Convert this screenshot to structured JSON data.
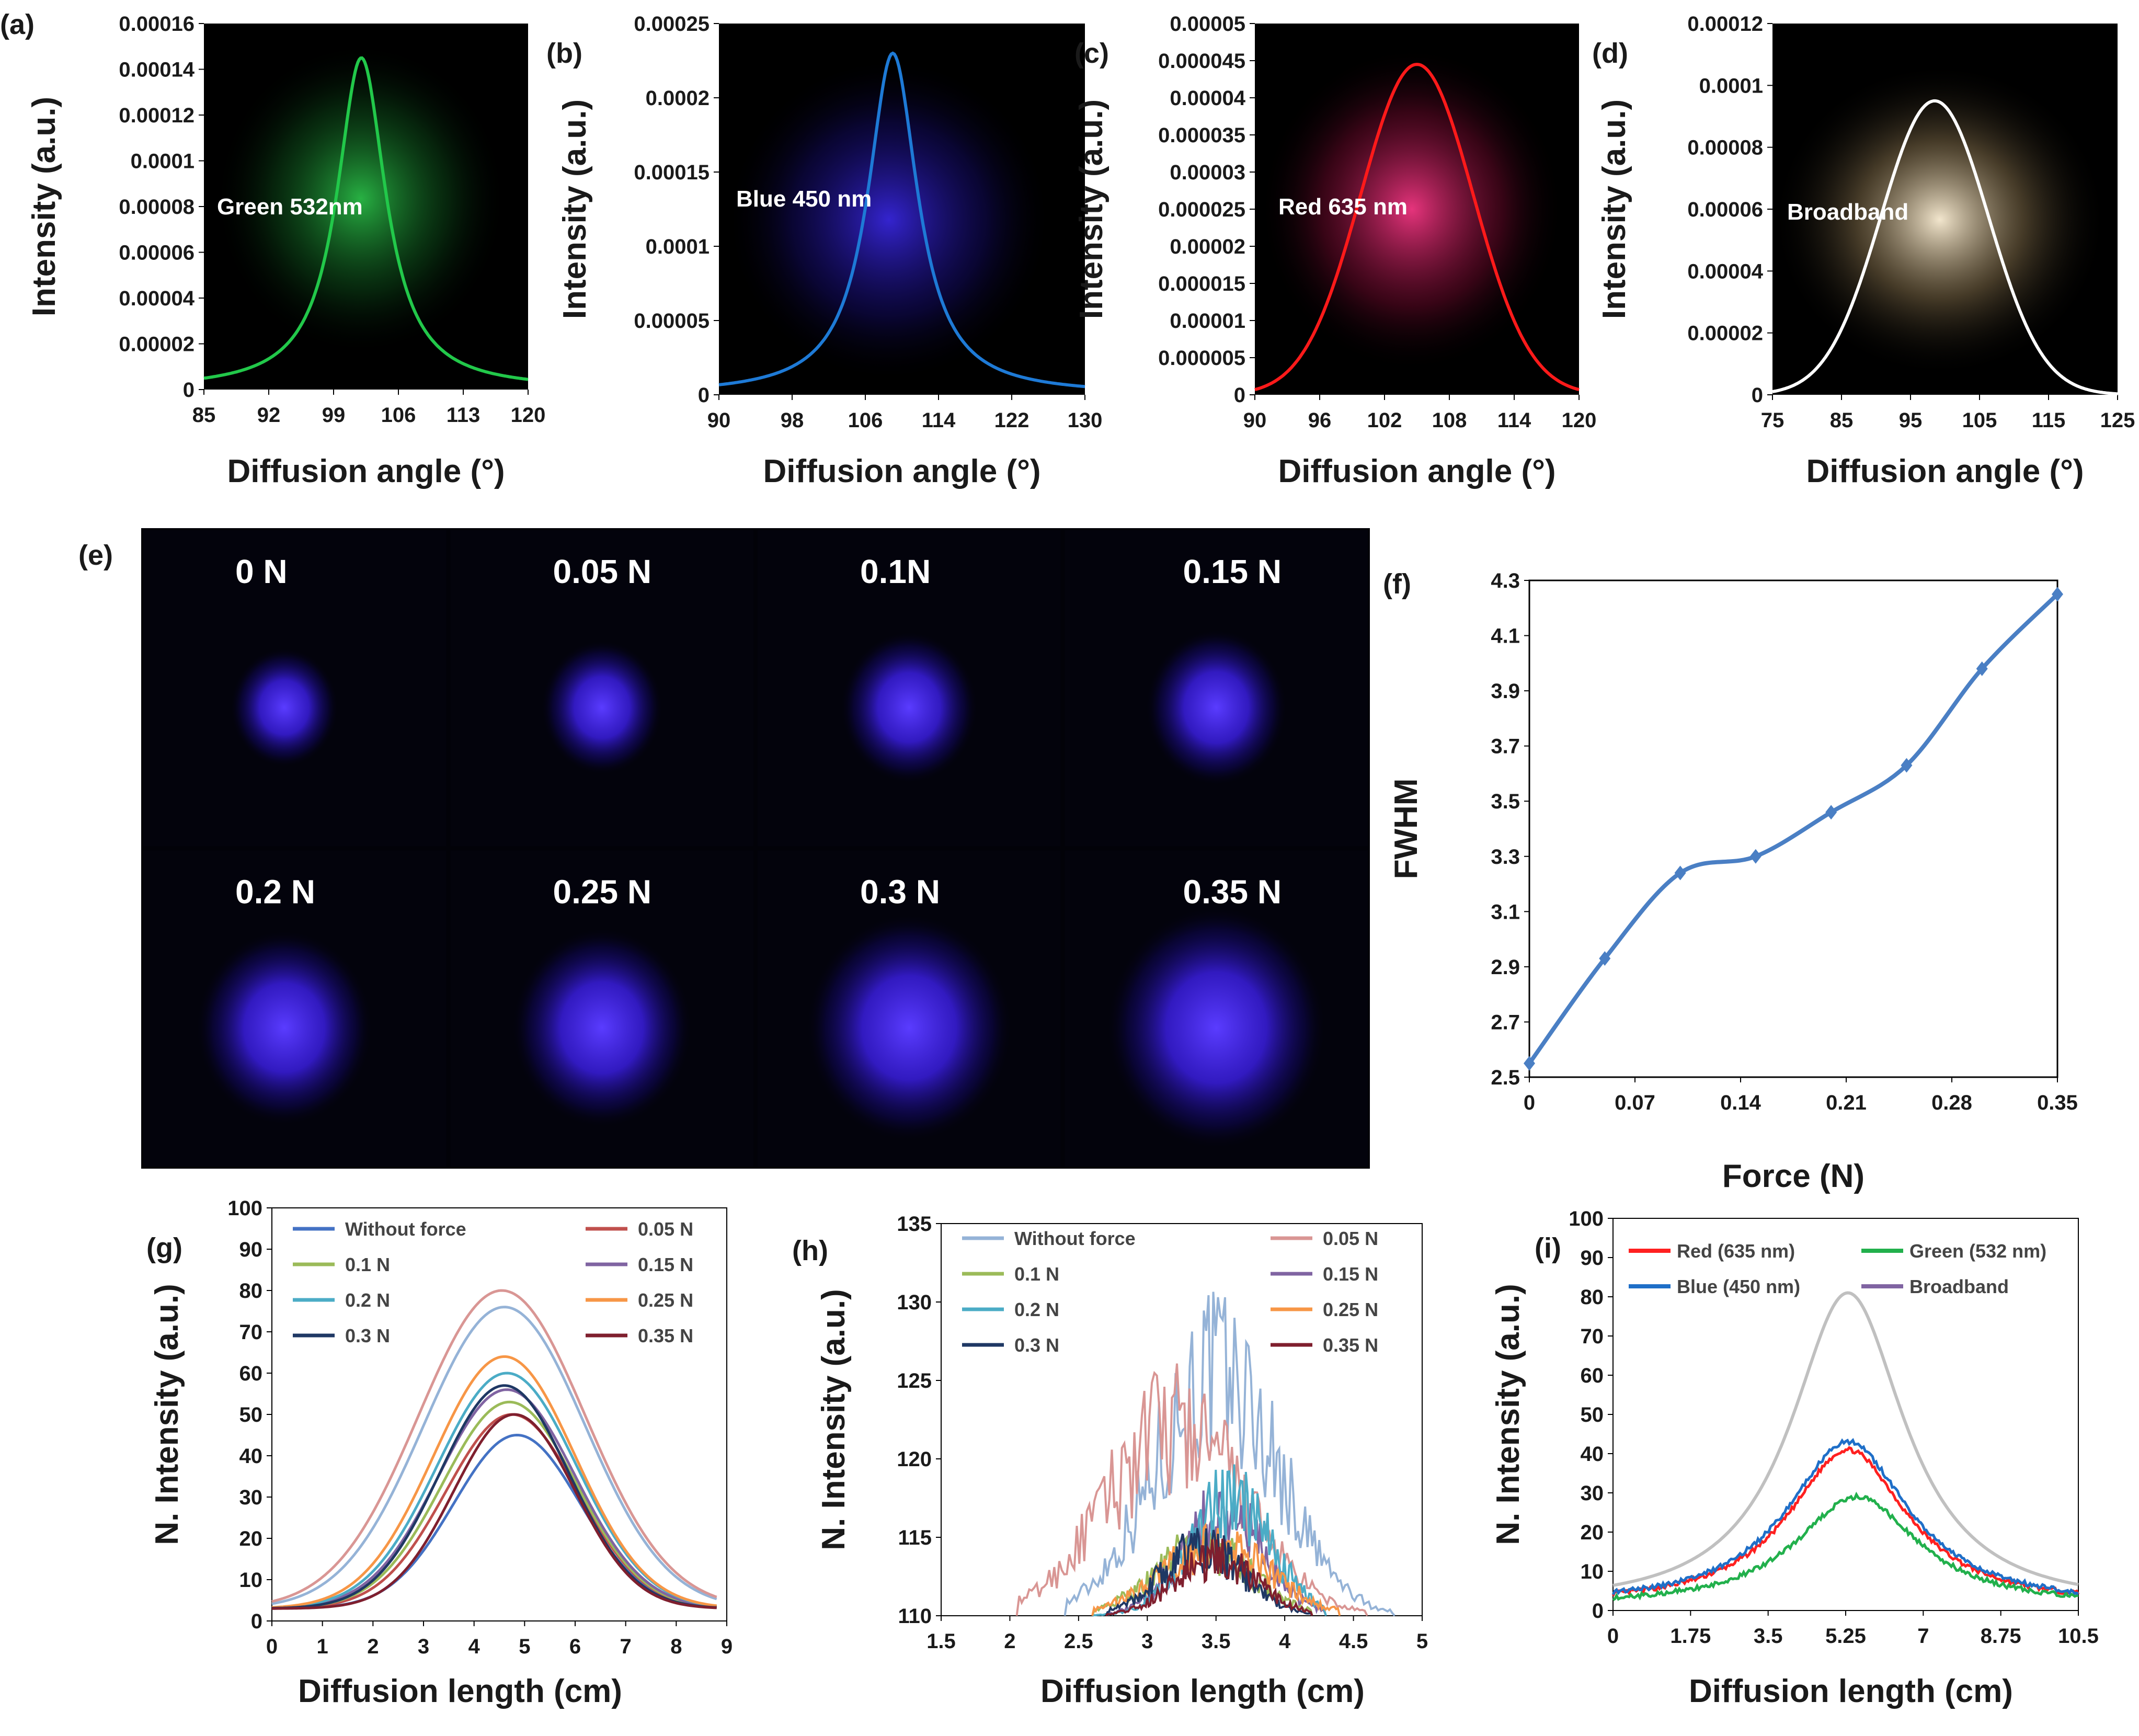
{
  "colors": {
    "green": "#22c84a",
    "blue": "#1e7ad6",
    "red": "#ff1a1a",
    "white": "#ffffff",
    "fwhm": "#4a7fc4",
    "spot": "#4a2cff"
  },
  "spots": {
    "panel_label": "(e)",
    "labels": [
      "0 N",
      "0.05 N",
      "0.1N",
      "0.15 N",
      "0.2 N",
      "0.25 N",
      "0.3 N",
      "0.35 N"
    ],
    "forces": [
      0,
      0.05,
      0.1,
      0.15,
      0.2,
      0.25,
      0.3,
      0.35
    ]
  },
  "chart_data": [
    {
      "id": "a",
      "panel_label": "(a)",
      "type": "line",
      "annotation": "Green 532nm",
      "color": "#22c84a",
      "glow": "#1fa83a",
      "xlabel": "Diffusion angle (°)",
      "ylabel": "Intensity (a.u.)",
      "xlim": [
        85,
        120
      ],
      "xticks": [
        "85",
        "92",
        "99",
        "106",
        "113",
        "120"
      ],
      "ylim": [
        0,
        0.00016
      ],
      "yticks": [
        "0",
        "0.00002",
        "0.00004",
        "0.00006",
        "0.00008",
        "0.0001",
        "0.00012",
        "0.00014",
        "0.00016"
      ],
      "peak": {
        "x": 102,
        "y": 0.000145,
        "width": 3.2,
        "shape": "lorentz"
      }
    },
    {
      "id": "b",
      "panel_label": "(b)",
      "type": "line",
      "annotation": "Blue 450 nm",
      "color": "#1e7ad6",
      "glow": "#2a1cc8",
      "xlabel": "Diffusion angle (°)",
      "ylabel": "Intensity (a.u.)",
      "xlim": [
        90,
        130
      ],
      "xticks": [
        "90",
        "98",
        "106",
        "114",
        "122",
        "130"
      ],
      "ylim": [
        0,
        0.00025
      ],
      "yticks": [
        "0",
        "0.00005",
        "0.0001",
        "0.00015",
        "0.0002",
        "0.00025"
      ],
      "peak": {
        "x": 109,
        "y": 0.00023,
        "width": 3.3,
        "shape": "lorentz"
      }
    },
    {
      "id": "c",
      "panel_label": "(c)",
      "type": "line",
      "annotation": "Red 635 nm",
      "color": "#ff1a1a",
      "glow": "#c8124a",
      "xlabel": "Diffusion angle (°)",
      "ylabel": "Intensity (a.u.)",
      "xlim": [
        90,
        120
      ],
      "xticks": [
        "90",
        "96",
        "102",
        "108",
        "114",
        "120"
      ],
      "ylim": [
        0,
        5e-05
      ],
      "yticks": [
        "0",
        "0.000005",
        "0.00001",
        "0.000015",
        "0.00002",
        "0.000025",
        "0.00003",
        "0.000035",
        "0.00004",
        "0.000045",
        "0.00005"
      ],
      "peak": {
        "x": 105,
        "y": 4.45e-05,
        "width": 5.2,
        "shape": "gauss"
      }
    },
    {
      "id": "d",
      "panel_label": "(d)",
      "type": "line",
      "annotation": "Broadband",
      "color": "#ffffff",
      "glow": "#d8c39a",
      "xlabel": "Diffusion angle (°)",
      "ylabel": "Intensity (a.u.)",
      "xlim": [
        75,
        125
      ],
      "xticks": [
        "75",
        "85",
        "95",
        "105",
        "115",
        "125"
      ],
      "ylim": [
        0,
        0.00012
      ],
      "yticks": [
        "0",
        "0.00002",
        "0.00004",
        "0.00006",
        "0.00008",
        "0.0001",
        "0.00012"
      ],
      "peak": {
        "x": 98.5,
        "y": 9.5e-05,
        "width": 7.8,
        "shape": "gauss"
      }
    },
    {
      "id": "f",
      "panel_label": "(f)",
      "type": "line",
      "xlabel": "Force (N)",
      "ylabel": "FWHM",
      "xlim": [
        0,
        0.35
      ],
      "xticks": [
        "0",
        "0.07",
        "0.14",
        "0.21",
        "0.28",
        "0.35"
      ],
      "ylim": [
        2.5,
        4.3
      ],
      "yticks": [
        "2.5",
        "2.7",
        "2.9",
        "3.1",
        "3.3",
        "3.5",
        "3.7",
        "3.9",
        "4.1",
        "4.3"
      ],
      "x": [
        0,
        0.05,
        0.1,
        0.15,
        0.2,
        0.25,
        0.3,
        0.35
      ],
      "y": [
        2.55,
        2.93,
        3.24,
        3.3,
        3.46,
        3.63,
        3.98,
        4.25
      ]
    },
    {
      "id": "g",
      "panel_label": "(g)",
      "type": "line",
      "xlabel": "Diffusion length (cm)",
      "ylabel": "N. Intensity (a.u.)",
      "xlim": [
        0,
        9
      ],
      "xticks": [
        "0",
        "1",
        "2",
        "3",
        "4",
        "5",
        "6",
        "7",
        "8",
        "9"
      ],
      "ylim": [
        0,
        100
      ],
      "yticks": [
        "0",
        "10",
        "20",
        "30",
        "40",
        "50",
        "60",
        "70",
        "80",
        "90",
        "100"
      ],
      "series": [
        {
          "name": "Without force",
          "color": "#4472c4",
          "peak": 45,
          "center": 4.85,
          "sigma": 1.25
        },
        {
          "name": "0.05 N",
          "color": "#c0504d",
          "peak": 50,
          "center": 4.75,
          "sigma": 1.3
        },
        {
          "name": "0.1 N",
          "color": "#9bbb59",
          "peak": 53,
          "center": 4.7,
          "sigma": 1.32
        },
        {
          "name": "0.15 N",
          "color": "#8064a2",
          "peak": 56,
          "center": 4.65,
          "sigma": 1.35
        },
        {
          "name": "0.2 N",
          "color": "#4bacc6",
          "peak": 60,
          "center": 4.65,
          "sigma": 1.38
        },
        {
          "name": "0.25 N",
          "color": "#f79646",
          "peak": 64,
          "center": 4.6,
          "sigma": 1.4
        },
        {
          "name": "0.3 N",
          "color": "#1f3864",
          "peak": 57,
          "center": 4.6,
          "sigma": 1.28
        },
        {
          "name": "0.35 N",
          "color": "#7f1f2e",
          "peak": 50,
          "center": 4.8,
          "sigma": 1.2
        },
        {
          "name": "",
          "color": "#95b3d7",
          "peak": 76,
          "center": 4.6,
          "sigma": 1.6
        },
        {
          "name": "",
          "color": "#d99694",
          "peak": 80,
          "center": 4.55,
          "sigma": 1.65
        }
      ]
    },
    {
      "id": "h",
      "panel_label": "(h)",
      "type": "line",
      "xlabel": "Diffusion length (cm)",
      "ylabel": "N. Intensity (a.u.)",
      "xlim": [
        1.5,
        5
      ],
      "xticks": [
        "1.5",
        "2",
        "2.5",
        "3",
        "3.5",
        "4",
        "4.5",
        "5"
      ],
      "ylim": [
        110,
        135
      ],
      "yticks": [
        "110",
        "115",
        "120",
        "125",
        "130",
        "135"
      ],
      "series": [
        {
          "name": "Without force",
          "color": "#95b3d7",
          "start": 2.4,
          "end": 4.8,
          "peak": 131.3,
          "center": 3.5,
          "spread": 0.45
        },
        {
          "name": "0.05 N",
          "color": "#d99694",
          "start": 2.05,
          "end": 4.6,
          "peak": 126.5,
          "center": 3.2,
          "spread": 0.5
        },
        {
          "name": "0.1 N",
          "color": "#9bbb59",
          "start": 2.6,
          "end": 4.2,
          "peak": 116,
          "center": 3.4,
          "spread": 0.35
        },
        {
          "name": "0.15 N",
          "color": "#8064a2",
          "start": 2.7,
          "end": 4.3,
          "peak": 119,
          "center": 3.55,
          "spread": 0.3
        },
        {
          "name": "0.2 N",
          "color": "#4bacc6",
          "start": 2.6,
          "end": 4.3,
          "peak": 120,
          "center": 3.6,
          "spread": 0.3
        },
        {
          "name": "0.25 N",
          "color": "#f79646",
          "start": 2.6,
          "end": 4.4,
          "peak": 116,
          "center": 3.5,
          "spread": 0.4
        },
        {
          "name": "0.3 N",
          "color": "#1f3864",
          "start": 2.7,
          "end": 4.2,
          "peak": 116,
          "center": 3.4,
          "spread": 0.3
        },
        {
          "name": "0.35 N",
          "color": "#7f1f2e",
          "start": 2.7,
          "end": 4.2,
          "peak": 115,
          "center": 3.5,
          "spread": 0.3
        }
      ]
    },
    {
      "id": "i",
      "panel_label": "(i)",
      "type": "line",
      "xlabel": "Diffusion length (cm)",
      "ylabel": "N. Intensity (a.u.)",
      "xlim": [
        0,
        10.5
      ],
      "xticks": [
        "0",
        "1.75",
        "3.5",
        "5.25",
        "7",
        "8.75",
        "10.5"
      ],
      "ylim": [
        0,
        100
      ],
      "yticks": [
        "0",
        "10",
        "20",
        "30",
        "40",
        "50",
        "60",
        "70",
        "80",
        "90",
        "100"
      ],
      "series": [
        {
          "name": "Red (635 nm)",
          "color": "#ff2020",
          "peak": 41,
          "center": 5.3,
          "gamma": 1.55,
          "base": 2.5
        },
        {
          "name": "Green (532 nm)",
          "color": "#22b04c",
          "peak": 29,
          "center": 5.5,
          "gamma": 1.6,
          "base": 2
        },
        {
          "name": "Blue (450 nm)",
          "color": "#1f6fc8",
          "peak": 43,
          "center": 5.3,
          "gamma": 1.6,
          "base": 2.5
        },
        {
          "name": "Broadband",
          "color": "#8064a2",
          "peak": 0,
          "center": 5.3,
          "gamma": 1.5,
          "base": 0
        },
        {
          "name": "",
          "color": "#c0c0c0",
          "peak": 81,
          "center": 5.3,
          "gamma": 1.5,
          "base": 3
        }
      ]
    }
  ]
}
